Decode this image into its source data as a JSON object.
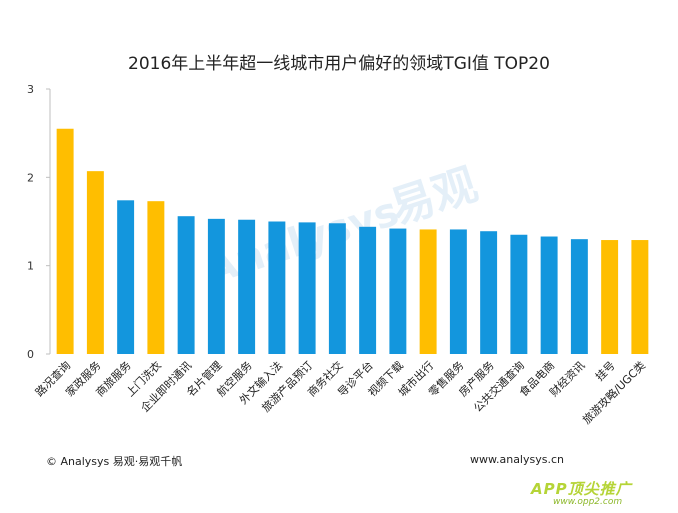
{
  "chart_data": {
    "type": "bar",
    "title": "2016年上半年超一线城市用户偏好的领域TGI值 TOP20",
    "ylim": [
      0,
      3
    ],
    "yticks": [
      0,
      1,
      2,
      3
    ],
    "grid": false,
    "categories": [
      "路况查询",
      "家政服务",
      "商旅服务",
      "上门洗衣",
      "企业即时通讯",
      "名片管理",
      "航空服务",
      "外文输入法",
      "旅游产品预订",
      "商务社交",
      "导诊平台",
      "视频下载",
      "城市出行",
      "零售服务",
      "房产服务",
      "公共交通查询",
      "食品电商",
      "财经资讯",
      "挂号",
      "旅游攻略/UGC类"
    ],
    "values": [
      2.55,
      2.07,
      1.74,
      1.73,
      1.56,
      1.53,
      1.52,
      1.5,
      1.49,
      1.48,
      1.44,
      1.42,
      1.41,
      1.41,
      1.39,
      1.35,
      1.33,
      1.3,
      1.29,
      1.29
    ],
    "bar_colors": [
      "#ffbe00",
      "#ffbe00",
      "#1396dd",
      "#ffbe00",
      "#1396dd",
      "#1396dd",
      "#1396dd",
      "#1396dd",
      "#1396dd",
      "#1396dd",
      "#1396dd",
      "#1396dd",
      "#ffbe00",
      "#1396dd",
      "#1396dd",
      "#1396dd",
      "#1396dd",
      "#1396dd",
      "#ffbe00",
      "#ffbe00"
    ]
  },
  "watermark": {
    "brand": "Analysys",
    "cn": "易观"
  },
  "footer": {
    "copyright": "© Analysys 易观·易观千帆",
    "url": "www.analysys.cn"
  },
  "badge": {
    "main": "APP顶尖推广",
    "sub": "www.opp2.com"
  }
}
